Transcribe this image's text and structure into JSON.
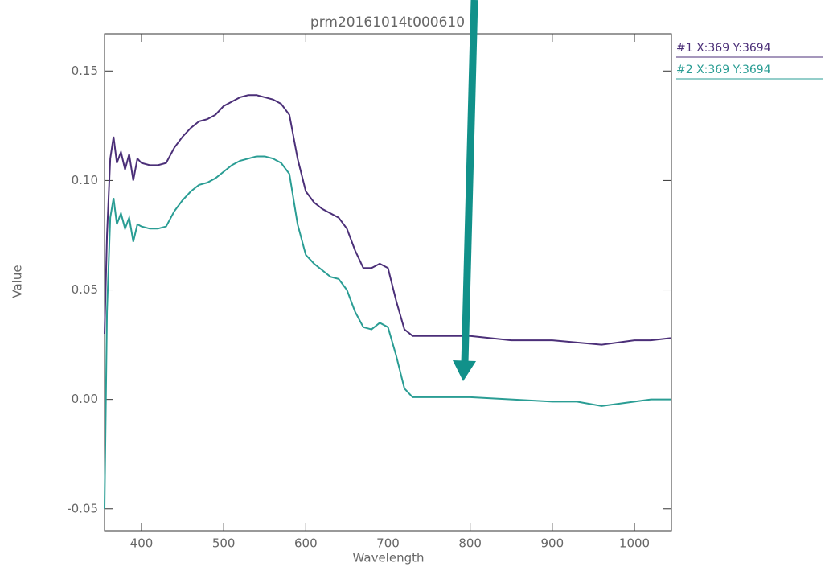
{
  "chart_data": {
    "type": "line",
    "title": "prm20161014t000610",
    "x_label": "Wavelength",
    "y_label": "Value",
    "x": [
      355,
      358,
      362,
      366,
      370,
      375,
      380,
      385,
      390,
      395,
      400,
      410,
      420,
      430,
      440,
      450,
      460,
      470,
      480,
      490,
      500,
      510,
      520,
      530,
      540,
      550,
      560,
      570,
      580,
      590,
      600,
      610,
      620,
      630,
      640,
      650,
      660,
      670,
      680,
      690,
      700,
      710,
      720,
      730,
      750,
      800,
      850,
      900,
      930,
      960,
      980,
      1000,
      1020,
      1044
    ],
    "series": [
      {
        "name": "#1 X:369 Y:3694",
        "color": "#4b2f78",
        "values": [
          0.03,
          0.075,
          0.11,
          0.12,
          0.108,
          0.113,
          0.105,
          0.112,
          0.1,
          0.11,
          0.108,
          0.107,
          0.107,
          0.108,
          0.115,
          0.12,
          0.124,
          0.127,
          0.128,
          0.13,
          0.134,
          0.136,
          0.138,
          0.139,
          0.139,
          0.138,
          0.137,
          0.135,
          0.13,
          0.11,
          0.095,
          0.09,
          0.087,
          0.085,
          0.083,
          0.078,
          0.068,
          0.06,
          0.06,
          0.062,
          0.06,
          0.045,
          0.032,
          0.029,
          0.029,
          0.029,
          0.027,
          0.027,
          0.026,
          0.025,
          0.026,
          0.027,
          0.027,
          0.028
        ]
      },
      {
        "name": "#2 X:369 Y:3694",
        "color": "#2a9d94",
        "values": [
          -0.05,
          0.04,
          0.083,
          0.092,
          0.08,
          0.085,
          0.078,
          0.083,
          0.072,
          0.08,
          0.079,
          0.078,
          0.078,
          0.079,
          0.086,
          0.091,
          0.095,
          0.098,
          0.099,
          0.101,
          0.104,
          0.107,
          0.109,
          0.11,
          0.111,
          0.111,
          0.11,
          0.108,
          0.103,
          0.08,
          0.066,
          0.062,
          0.059,
          0.056,
          0.055,
          0.05,
          0.04,
          0.033,
          0.032,
          0.035,
          0.033,
          0.02,
          0.005,
          0.001,
          0.001,
          0.001,
          0.0,
          -0.001,
          -0.001,
          -0.003,
          -0.002,
          -0.001,
          0.0,
          0.0
        ]
      }
    ],
    "xlim": [
      355,
      1045
    ],
    "ylim": [
      -0.06,
      0.167
    ],
    "xticks": [
      400,
      500,
      600,
      700,
      800,
      900,
      1000
    ],
    "yticks": [
      -0.05,
      {
        "value": 0,
        "label": "0.00"
      },
      0.05,
      {
        "value": 0.1,
        "label": "0.10"
      },
      0.15
    ],
    "legend": "right"
  }
}
